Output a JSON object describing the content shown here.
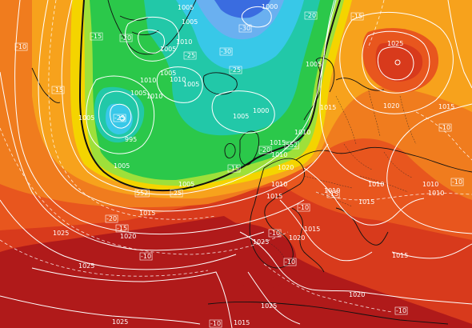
{
  "map": {
    "colors": {
      "deep_red": "#b01a1a",
      "red": "#d83a1c",
      "orange_red": "#e8561e",
      "orange": "#f07c1e",
      "amber": "#f7a21c",
      "yellow": "#f4d400",
      "lime": "#9ee03a",
      "green": "#2bc84a",
      "teal": "#22c8a8",
      "cyan": "#38c8e8",
      "light_blue": "#6ab0f0",
      "blue": "#3a6ce0",
      "isobar": "#ffffff",
      "coast": "#111111"
    },
    "isobar_labels": [
      "1005",
      "1000",
      "1005",
      "1010",
      "1005",
      "1005",
      "1010",
      "1010",
      "1005",
      "1000",
      "1005",
      "995",
      "1005",
      "1005",
      "1010",
      "1015",
      "1020",
      "1025",
      "1025",
      "1020",
      "1015",
      "1015",
      "1010",
      "1010",
      "1010",
      "1015",
      "1020",
      "1025",
      "1025",
      "1015",
      "1020",
      "1025",
      "1025",
      "1015",
      "1015",
      "1010",
      "1010",
      "1005",
      "1005",
      "1015",
      "1005",
      "1010",
      "1010",
      "1015",
      "1020"
    ],
    "thickness_labels": [
      "552",
      "552",
      "-10",
      "-15",
      "-15",
      "-20",
      "-25",
      "-25",
      "-30",
      "-30",
      "-25",
      "-20",
      "-25",
      "-20",
      "-15",
      "-20",
      "-15",
      "-10",
      "-10",
      "-15",
      "-10",
      "-10",
      "-10",
      "-15",
      "-10",
      "-10",
      "-10"
    ]
  }
}
